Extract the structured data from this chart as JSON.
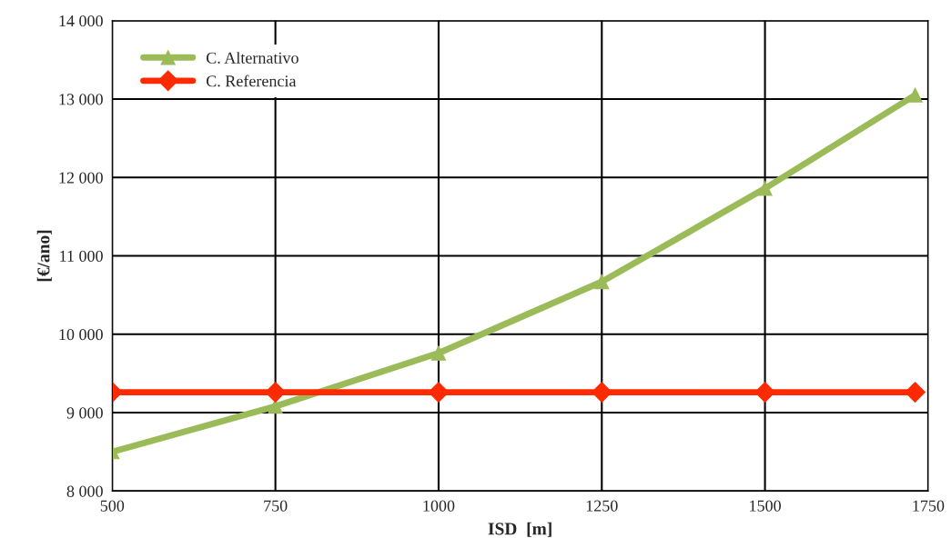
{
  "chart_data": {
    "type": "line",
    "xlabel": "ISD  [m]",
    "ylabel": "[€/ano]",
    "xlim": [
      500,
      1750
    ],
    "xticks": [
      500,
      750,
      1000,
      1250,
      1500,
      1750
    ],
    "ylim": [
      8000,
      14000
    ],
    "yticks": [
      {
        "value": 8000,
        "label": "8 000"
      },
      {
        "value": 9000,
        "label": "9 000"
      },
      {
        "value": 10000,
        "label": "10 000"
      },
      {
        "value": 11000,
        "label": "11 000"
      },
      {
        "value": 12000,
        "label": "12 000"
      },
      {
        "value": 13000,
        "label": "13 000"
      },
      {
        "value": 14000,
        "label": "14 000"
      }
    ],
    "grid": true,
    "legend": "top left",
    "series": [
      {
        "name": "C. Alternativo",
        "color": "#9bbb59",
        "marker": "triangle",
        "x": [
          500,
          750,
          1000,
          1250,
          1500,
          1730
        ],
        "values": [
          8500,
          9080,
          9760,
          10670,
          11860,
          13050
        ]
      },
      {
        "name": "C. Referencia",
        "color": "#ff2a00",
        "marker": "diamond",
        "x": [
          500,
          750,
          1000,
          1250,
          1500,
          1730
        ],
        "values": [
          9260,
          9260,
          9260,
          9260,
          9260,
          9260
        ]
      }
    ]
  }
}
